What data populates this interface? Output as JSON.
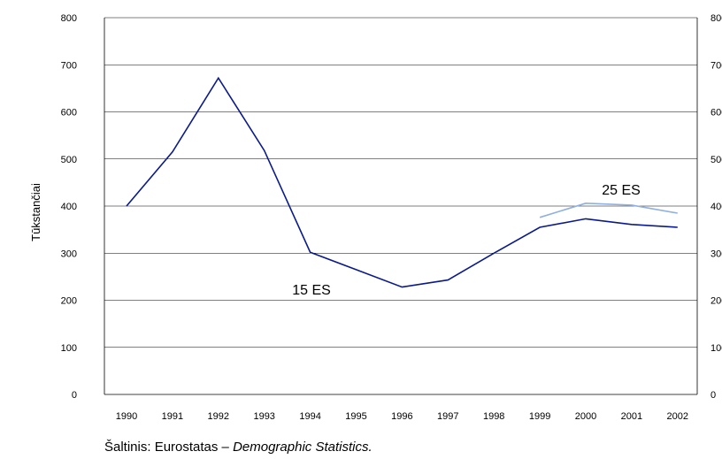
{
  "chart_data": {
    "type": "line",
    "ylabel": "Tūkstančiai",
    "ylim": [
      0,
      800
    ],
    "yticks": [
      0,
      100,
      200,
      300,
      400,
      500,
      600,
      700,
      800
    ],
    "categories": [
      "1990",
      "1991",
      "1992",
      "1993",
      "1994",
      "1995",
      "1996",
      "1997",
      "1998",
      "1999",
      "2000",
      "2001",
      "2002"
    ],
    "grid": true,
    "series": [
      {
        "name": "15 ES",
        "color": "#0a1a8c",
        "values": [
          400,
          515,
          672,
          518,
          302,
          265,
          228,
          243,
          300,
          355,
          373,
          361,
          355
        ]
      },
      {
        "name": "25 ES",
        "color": "#8fb0e0",
        "values": [
          null,
          null,
          null,
          null,
          null,
          null,
          null,
          null,
          null,
          376,
          406,
          402,
          385
        ]
      }
    ]
  },
  "source": {
    "prefix": "Šaltinis: Eurostatas – ",
    "title": "Demographic Statistics."
  }
}
